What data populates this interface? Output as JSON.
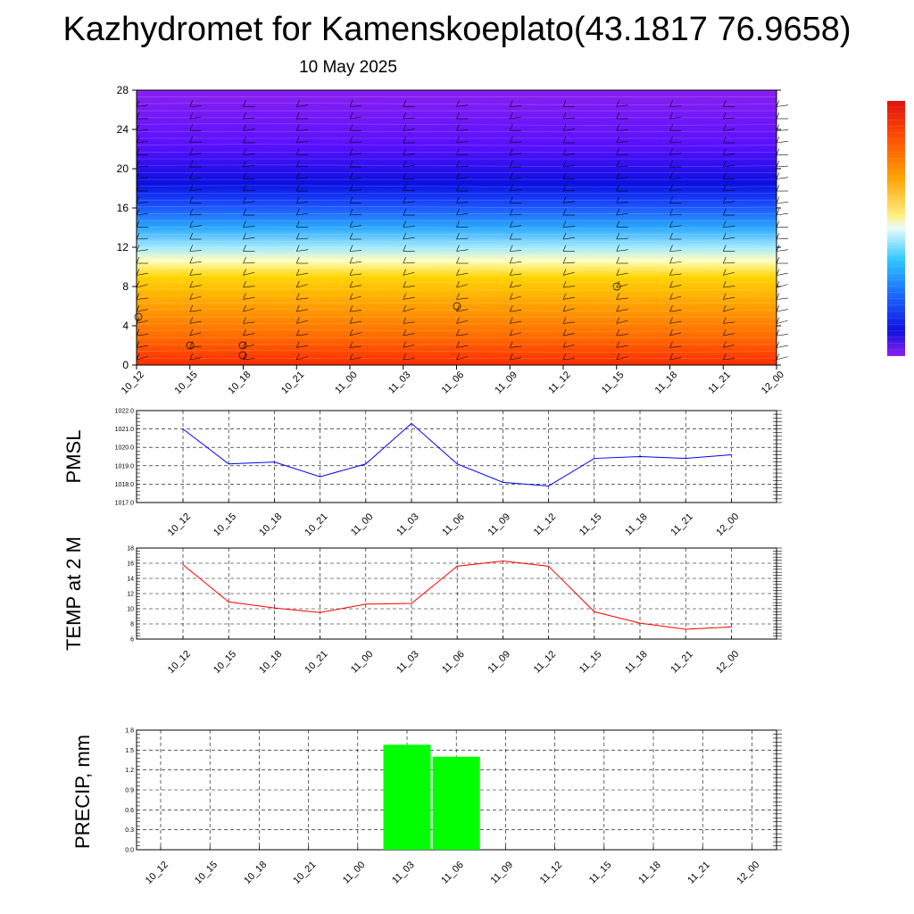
{
  "title": "Kazhydromet for Kamenskoeplato(43.1817 76.9658)",
  "subtitle": "10 May 2025",
  "colors": {
    "pmsl_line": "#0000ff",
    "temp_line": "#ff0000",
    "precip_bar": "#00ff00",
    "grid": "#000000"
  },
  "chart_data": [
    {
      "type": "heatmap",
      "name": "upper-cross-section",
      "x_labels": [
        "10_12",
        "10_15",
        "10_18",
        "10_21",
        "11_00",
        "11_03",
        "11_06",
        "11_09",
        "11_12",
        "11_15",
        "11_18",
        "11_21",
        "12_00"
      ],
      "y_ticks": [
        0,
        4,
        8,
        12,
        16,
        20,
        24,
        28
      ],
      "ylim": [
        0,
        28
      ],
      "colorbar": [
        "#ff2a00",
        "#ff6a00",
        "#ffa200",
        "#ffd400",
        "#ffffc0",
        "#a0e8ff",
        "#2aa8ff",
        "#1a50ff",
        "#0a10e0",
        "#5a10ff",
        "#8a20f0"
      ],
      "wind_barbs": true,
      "calm_circles": true
    },
    {
      "type": "line",
      "name": "pmsl",
      "ylabel": "PMSL",
      "x": [
        "10_12",
        "10_15",
        "10_18",
        "10_21",
        "11_00",
        "11_03",
        "11_06",
        "11_09",
        "11_12",
        "11_15",
        "11_18",
        "11_21",
        "12_00"
      ],
      "values": [
        1021.0,
        1019.1,
        1019.2,
        1018.4,
        1019.1,
        1021.3,
        1019.1,
        1018.1,
        1017.9,
        1019.4,
        1019.5,
        1019.4,
        1019.6
      ],
      "y_ticks": [
        "1017.0",
        "1018.0",
        "1019.0",
        "1020.0",
        "1021.0",
        "1022.0"
      ],
      "ylim": [
        1017,
        1022
      ],
      "grid": true
    },
    {
      "type": "line",
      "name": "temp",
      "ylabel": "TEMP at 2 M",
      "x": [
        "10_12",
        "10_15",
        "10_18",
        "10_21",
        "11_00",
        "11_03",
        "11_06",
        "11_09",
        "11_12",
        "11_15",
        "11_18",
        "11_21",
        "12_00"
      ],
      "values": [
        15.8,
        10.9,
        10.1,
        9.5,
        10.6,
        10.7,
        15.6,
        16.3,
        15.6,
        9.6,
        8.1,
        7.3,
        7.6
      ],
      "y_ticks": [
        "6",
        "8",
        "10",
        "12",
        "14",
        "16",
        "18"
      ],
      "ylim": [
        6,
        18
      ],
      "grid": true
    },
    {
      "type": "bar",
      "name": "precip",
      "ylabel": "PRECIP, mm",
      "categories": [
        "10_12",
        "10_15",
        "10_18",
        "10_21",
        "11_00",
        "11_03",
        "11_06",
        "11_09",
        "11_12",
        "11_15",
        "11_18",
        "11_21",
        "12_00"
      ],
      "values": [
        0,
        0,
        0,
        0,
        0,
        1.58,
        1.4,
        0,
        0,
        0,
        0,
        0,
        0
      ],
      "y_ticks": [
        "0.0",
        "0.3",
        "0.6",
        "0.9",
        "1.2",
        "1.5",
        "1.8"
      ],
      "ylim": [
        0,
        1.8
      ],
      "grid": true
    }
  ]
}
